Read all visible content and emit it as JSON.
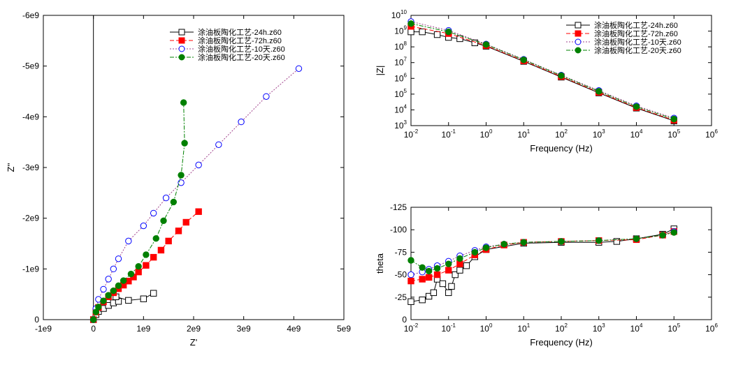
{
  "legend": [
    "涂油板陶化工艺-24h.z60",
    "涂油板陶化工艺-72h.z60",
    "涂油板陶化工艺-10天.z60",
    "涂油板陶化工艺-20天.z60"
  ],
  "colors": {
    "series_24h": "#000000",
    "series_72h": "#ff0000",
    "series_10d": "#0000ff",
    "series_20d": "#008000",
    "line_10d": "#a0428c"
  },
  "chart_data": [
    {
      "type": "scatter",
      "xlabel": "Z'",
      "ylabel": "Z''",
      "xlim": [
        -1000000000.0,
        5000000000.0
      ],
      "ylim": [
        0,
        -6000000000.0
      ],
      "y_inverted": true,
      "x_ticks": [
        "-1e9",
        "0",
        "1e9",
        "2e9",
        "3e9",
        "4e9",
        "5e9"
      ],
      "y_ticks": [
        "0",
        "-1e9",
        "-2e9",
        "-3e9",
        "-4e9",
        "-5e9",
        "-6e9"
      ],
      "legend_position": "top-right",
      "series": [
        {
          "name": "涂油板陶化工艺-24h.z60",
          "marker": "open-square",
          "x": [
            0,
            50000000.0,
            100000000.0,
            200000000.0,
            300000000.0,
            400000000.0,
            500000000.0,
            450000000.0,
            700000000.0,
            1000000000.0,
            1200000000.0
          ],
          "y": [
            0,
            -100000000.0,
            -160000000.0,
            -220000000.0,
            -280000000.0,
            -330000000.0,
            -360000000.0,
            -450000000.0,
            -380000000.0,
            -410000000.0,
            -520000000.0
          ]
        },
        {
          "name": "涂油板陶化工艺-72h.z60",
          "marker": "filled-square",
          "x": [
            0,
            50000000.0,
            100000000.0,
            200000000.0,
            300000000.0,
            400000000.0,
            500000000.0,
            600000000.0,
            700000000.0,
            800000000.0,
            900000000.0,
            1050000000.0,
            1200000000.0,
            1350000000.0,
            1500000000.0,
            1700000000.0,
            1850000000.0,
            2100000000.0
          ],
          "y": [
            0,
            -150000000.0,
            -240000000.0,
            -350000000.0,
            -450000000.0,
            -530000000.0,
            -610000000.0,
            -680000000.0,
            -760000000.0,
            -840000000.0,
            -940000000.0,
            -1070000000.0,
            -1230000000.0,
            -1370000000.0,
            -1550000000.0,
            -1750000000.0,
            -1920000000.0,
            -2130000000.0
          ]
        },
        {
          "name": "涂油板陶化工艺-10天.z60",
          "marker": "open-circle",
          "x": [
            0,
            50000000.0,
            100000000.0,
            200000000.0,
            300000000.0,
            400000000.0,
            500000000.0,
            700000000.0,
            1000000000.0,
            1200000000.0,
            1450000000.0,
            1750000000.0,
            2100000000.0,
            2500000000.0,
            2950000000.0,
            3450000000.0,
            4100000000.0
          ],
          "y": [
            0,
            -220000000.0,
            -400000000.0,
            -600000000.0,
            -800000000.0,
            -1000000000.0,
            -1200000000.0,
            -1550000000.0,
            -1850000000.0,
            -2100000000.0,
            -2400000000.0,
            -2700000000.0,
            -3050000000.0,
            -3450000000.0,
            -3900000000.0,
            -4400000000.0,
            -4950000000.0
          ]
        },
        {
          "name": "涂油板陶化工艺-20天.z60",
          "marker": "filled-circle",
          "x": [
            0,
            50000000.0,
            100000000.0,
            200000000.0,
            300000000.0,
            400000000.0,
            500000000.0,
            600000000.0,
            750000000.0,
            900000000.0,
            1050000000.0,
            1250000000.0,
            1400000000.0,
            1600000000.0,
            1750000000.0,
            1820000000.0,
            1800000000.0
          ],
          "y": [
            0,
            -150000000.0,
            -250000000.0,
            -370000000.0,
            -480000000.0,
            -570000000.0,
            -670000000.0,
            -770000000.0,
            -900000000.0,
            -1050000000.0,
            -1280000000.0,
            -1600000000.0,
            -1950000000.0,
            -2320000000.0,
            -2850000000.0,
            -3480000000.0,
            -4280000000.0
          ]
        }
      ]
    },
    {
      "type": "scatter",
      "xlabel": "Frequency (Hz)",
      "ylabel": "|Z|",
      "x_scale": "log",
      "y_scale": "log",
      "xlim": [
        0.01,
        1000000
      ],
      "ylim": [
        1000,
        10000000000
      ],
      "x_ticks": [
        "10-2",
        "10-1",
        "100",
        "101",
        "102",
        "103",
        "104",
        "105",
        "106"
      ],
      "y_ticks": [
        "103",
        "104",
        "105",
        "106",
        "107",
        "108",
        "109",
        "1010"
      ],
      "legend_position": "top-right",
      "series": [
        {
          "name": "涂油板陶化工艺-24h.z60",
          "marker": "open-square",
          "x": [
            0.01,
            0.02,
            0.05,
            0.1,
            0.2,
            0.5,
            1,
            10,
            100,
            1000,
            10000,
            100000
          ],
          "y": [
            900000000,
            900000000,
            600000000,
            400000000,
            330000000,
            180000000,
            110000000,
            12000000,
            1200000,
            120000,
            13000,
            2000
          ]
        },
        {
          "name": "涂油板陶化工艺-72h.z60",
          "marker": "filled-square",
          "x": [
            0.01,
            0.1,
            1,
            10,
            100,
            1000,
            10000,
            100000
          ],
          "y": [
            2000000000,
            700000000,
            120000000,
            13000000,
            1300000,
            130000,
            14000,
            2200
          ]
        },
        {
          "name": "涂油板陶化工艺-10天.z60",
          "marker": "open-circle",
          "x": [
            0.01,
            0.1,
            1,
            10,
            100,
            1000,
            10000,
            100000
          ],
          "y": [
            4000000000,
            1100000000,
            150000000,
            16000000,
            1600000,
            170000,
            18000,
            3000
          ]
        },
        {
          "name": "涂油板陶化工艺-20天.z60",
          "marker": "filled-circle",
          "x": [
            0.01,
            0.1,
            1,
            10,
            100,
            1000,
            10000,
            100000
          ],
          "y": [
            3000000000,
            900000000,
            140000000,
            15000000,
            1500000,
            150000,
            16000,
            2600
          ]
        }
      ]
    },
    {
      "type": "scatter",
      "xlabel": "Frequency (Hz)",
      "ylabel": "theta",
      "x_scale": "log",
      "xlim": [
        0.01,
        1000000
      ],
      "ylim": [
        0,
        -125
      ],
      "y_inverted": true,
      "x_ticks": [
        "10-2",
        "10-1",
        "100",
        "101",
        "102",
        "103",
        "104",
        "105",
        "106"
      ],
      "y_ticks": [
        "0",
        "-25",
        "-50",
        "-75",
        "-100",
        "-125"
      ],
      "series": [
        {
          "name": "涂油板陶化工艺-24h.z60",
          "marker": "open-square",
          "x": [
            0.01,
            0.02,
            0.03,
            0.04,
            0.05,
            0.07,
            0.1,
            0.12,
            0.15,
            0.2,
            0.3,
            0.5,
            1,
            10,
            100,
            1000,
            3000,
            10000,
            50000,
            100000
          ],
          "y": [
            -20,
            -22,
            -26,
            -30,
            -45,
            -40,
            -30,
            -37,
            -50,
            -55,
            -60,
            -70,
            -78,
            -85,
            -86,
            -86,
            -87,
            -90,
            -95,
            -101
          ]
        },
        {
          "name": "涂油板陶化工艺-72h.z60",
          "marker": "filled-square",
          "x": [
            0.01,
            0.02,
            0.03,
            0.05,
            0.1,
            0.2,
            0.5,
            1,
            3,
            10,
            100,
            1000,
            10000,
            50000,
            100000
          ],
          "y": [
            -43,
            -45,
            -47,
            -50,
            -55,
            -62,
            -72,
            -78,
            -83,
            -86,
            -87,
            -88,
            -89,
            -94,
            -98
          ]
        },
        {
          "name": "涂油板陶化工艺-10天.z60",
          "marker": "open-circle",
          "x": [
            0.01,
            0.02,
            0.03,
            0.05,
            0.1,
            0.2,
            0.5,
            1,
            3,
            10,
            100,
            1000,
            10000,
            50000,
            100000
          ],
          "y": [
            -50,
            -53,
            -56,
            -60,
            -65,
            -71,
            -77,
            -81,
            -84,
            -86,
            -87,
            -88,
            -90,
            -94,
            -98
          ]
        },
        {
          "name": "涂油板陶化工艺-20天.z60",
          "marker": "filled-circle",
          "x": [
            0.01,
            0.02,
            0.03,
            0.05,
            0.1,
            0.2,
            0.5,
            1,
            3,
            10,
            100,
            1000,
            10000,
            50000,
            100000
          ],
          "y": [
            -66,
            -58,
            -54,
            -57,
            -62,
            -68,
            -75,
            -80,
            -84,
            -86,
            -87,
            -88,
            -90,
            -94,
            -97
          ]
        }
      ]
    }
  ]
}
